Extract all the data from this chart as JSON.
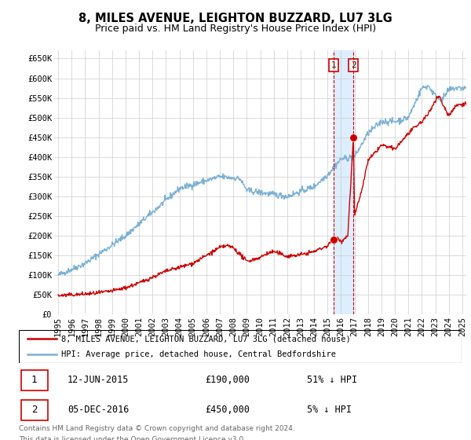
{
  "title": "8, MILES AVENUE, LEIGHTON BUZZARD, LU7 3LG",
  "subtitle": "Price paid vs. HM Land Registry's House Price Index (HPI)",
  "title_fontsize": 10.5,
  "subtitle_fontsize": 9,
  "ylabel_ticks": [
    "£0",
    "£50K",
    "£100K",
    "£150K",
    "£200K",
    "£250K",
    "£300K",
    "£350K",
    "£400K",
    "£450K",
    "£500K",
    "£550K",
    "£600K",
    "£650K"
  ],
  "ytick_values": [
    0,
    50000,
    100000,
    150000,
    200000,
    250000,
    300000,
    350000,
    400000,
    450000,
    500000,
    550000,
    600000,
    650000
  ],
  "ylim": [
    0,
    670000
  ],
  "xlim_start": 1994.7,
  "xlim_end": 2025.3,
  "transaction1_date": 2015.44,
  "transaction1_price": 190000,
  "transaction2_date": 2016.92,
  "transaction2_price": 450000,
  "hpi_color": "#7ab0d4",
  "price_color": "#cc0000",
  "shade_color": "#ddeeff",
  "legend_entry1": "8, MILES AVENUE, LEIGHTON BUZZARD, LU7 3LG (detached house)",
  "legend_entry2": "HPI: Average price, detached house, Central Bedfordshire",
  "annotation_box_color": "#cc0000",
  "footnote1": "Contains HM Land Registry data © Crown copyright and database right 2024.",
  "footnote2": "This data is licensed under the Open Government Licence v3.0.",
  "background_color": "#ffffff",
  "grid_color": "#cccccc",
  "xticks": [
    1995,
    1996,
    1997,
    1998,
    1999,
    2000,
    2001,
    2002,
    2003,
    2004,
    2005,
    2006,
    2007,
    2008,
    2009,
    2010,
    2011,
    2012,
    2013,
    2014,
    2015,
    2016,
    2017,
    2018,
    2019,
    2020,
    2021,
    2022,
    2023,
    2024,
    2025
  ]
}
